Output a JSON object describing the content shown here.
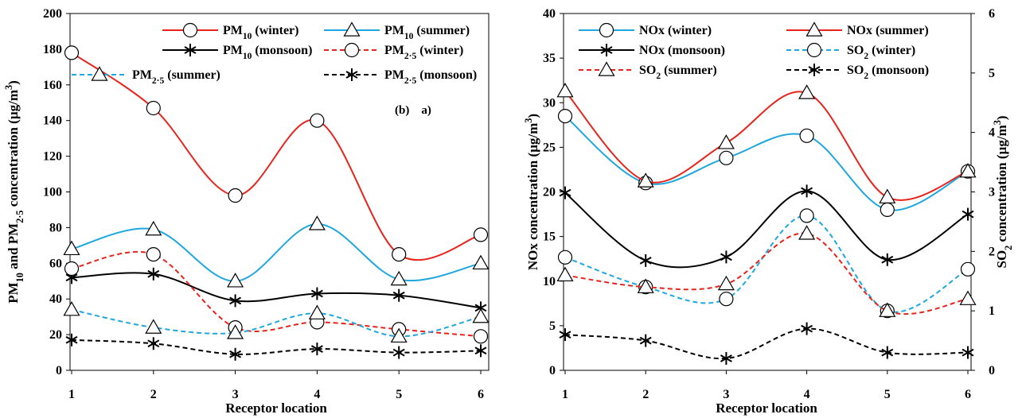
{
  "chart_data": [
    {
      "type": "line",
      "panel_label": "(b)    a)",
      "xlabel": "Receptor location",
      "ylabel": "PM10 and PM2·5 concentration (µg/m³)",
      "ylabel_parts": [
        "PM",
        "10",
        " and PM",
        "2·5",
        " concentration (µg/m",
        "3",
        ")"
      ],
      "x": [
        1,
        2,
        3,
        4,
        5,
        6
      ],
      "xlim": [
        1,
        6
      ],
      "ylim": [
        0,
        200
      ],
      "yticks": [
        0,
        20,
        40,
        60,
        80,
        100,
        120,
        140,
        160,
        180,
        200
      ],
      "grid": false,
      "legend_position": "top",
      "series": [
        {
          "name": "PM10 (winter)",
          "label_parts": [
            "PM",
            "10",
            " (winter)"
          ],
          "sub": "10",
          "color": "#e8231b",
          "dash": "solid",
          "marker": "circle",
          "values": [
            178,
            147,
            98,
            140,
            65,
            76
          ],
          "axis": "left"
        },
        {
          "name": "PM10 (summer)",
          "label_parts": [
            "PM",
            "10",
            " (summer)"
          ],
          "sub": "10",
          "color": "#1ea7df",
          "dash": "solid",
          "marker": "triangle",
          "values": [
            68,
            79,
            50,
            82,
            51,
            60
          ],
          "axis": "left"
        },
        {
          "name": "PM10 (monsoon)",
          "label_parts": [
            "PM",
            "10",
            " (monsoon)"
          ],
          "sub": "10",
          "color": "#000000",
          "dash": "solid",
          "marker": "asterisk",
          "values": [
            52,
            54,
            39,
            43,
            42,
            35
          ],
          "axis": "left"
        },
        {
          "name": "PM2·5 (winter)",
          "label_parts": [
            "PM",
            "2·5",
            " (winter)"
          ],
          "sub": "2·5",
          "color": "#e8231b",
          "dash": "dashed",
          "marker": "circle",
          "values": [
            57,
            65,
            24,
            27,
            23,
            19
          ],
          "axis": "left"
        },
        {
          "name": "PM2·5 (summer)",
          "label_parts": [
            "PM",
            "2·5",
            " (summer)"
          ],
          "sub": "2·5",
          "color": "#1ea7df",
          "dash": "dashed",
          "marker": "triangle",
          "values": [
            34,
            24,
            21,
            32,
            19,
            30
          ],
          "axis": "left"
        },
        {
          "name": "PM2·5 (monsoon)",
          "label_parts": [
            "PM",
            "2·5",
            " (monsoon)"
          ],
          "sub": "2·5",
          "color": "#000000",
          "dash": "dashed",
          "marker": "asterisk",
          "values": [
            17,
            15,
            9,
            12,
            10,
            11
          ],
          "axis": "left"
        }
      ]
    },
    {
      "type": "line",
      "xlabel": "Receptor location",
      "ylabel": "NOx concentration (µg/m³)",
      "ylabel_parts": [
        "NOx concentration (µg/m",
        "3",
        ")"
      ],
      "y2label": "SO2 concentration (µg/m³)",
      "y2label_parts": [
        "SO",
        "2",
        " concentration (µg/m",
        "3",
        ")"
      ],
      "x": [
        1,
        2,
        3,
        4,
        5,
        6
      ],
      "xlim": [
        1,
        6
      ],
      "ylim": [
        0,
        40
      ],
      "yticks": [
        0,
        5,
        10,
        15,
        20,
        25,
        30,
        35,
        40
      ],
      "y2lim": [
        0,
        6
      ],
      "y2ticks": [
        0,
        1,
        2,
        3,
        4,
        5,
        6
      ],
      "grid": false,
      "legend_position": "top",
      "series": [
        {
          "name": "NOx (winter)",
          "label_parts": [
            "NOx (winter)"
          ],
          "color": "#1ea7df",
          "dash": "solid",
          "marker": "circle",
          "values": [
            28.5,
            21,
            23.8,
            26.3,
            18,
            22.3
          ],
          "axis": "left"
        },
        {
          "name": "NOx (summer)",
          "label_parts": [
            "NOx (summer)"
          ],
          "color": "#e8231b",
          "dash": "solid",
          "marker": "triangle",
          "values": [
            31.3,
            21.2,
            25.5,
            31.1,
            19.4,
            22.3
          ],
          "axis": "left"
        },
        {
          "name": "NOx (monsoon)",
          "label_parts": [
            "NOx (monsoon)"
          ],
          "color": "#000000",
          "dash": "solid",
          "marker": "asterisk",
          "values": [
            19.9,
            12.3,
            12.7,
            20.1,
            12.4,
            17.5
          ],
          "axis": "left"
        },
        {
          "name": "SO2 (winter)",
          "label_parts": [
            "SO",
            "2",
            " (winter)"
          ],
          "sub": "2",
          "color": "#1ea7df",
          "dash": "dashed",
          "marker": "circle",
          "values": [
            1.9,
            1.4,
            1.2,
            2.6,
            1.0,
            1.7
          ],
          "axis": "right"
        },
        {
          "name": "SO2 (summer)",
          "label_parts": [
            "SO",
            "2",
            " (summer)"
          ],
          "sub": "2",
          "color": "#e8231b",
          "dash": "dashed",
          "marker": "triangle",
          "values": [
            1.6,
            1.4,
            1.45,
            2.3,
            1.0,
            1.2
          ],
          "axis": "right"
        },
        {
          "name": "SO2 (monsoon)",
          "label_parts": [
            "SO",
            "2",
            " (monsoon)"
          ],
          "sub": "2",
          "color": "#000000",
          "dash": "dashed",
          "marker": "asterisk",
          "values": [
            0.6,
            0.5,
            0.2,
            0.7,
            0.3,
            0.3
          ],
          "axis": "right"
        }
      ]
    }
  ]
}
